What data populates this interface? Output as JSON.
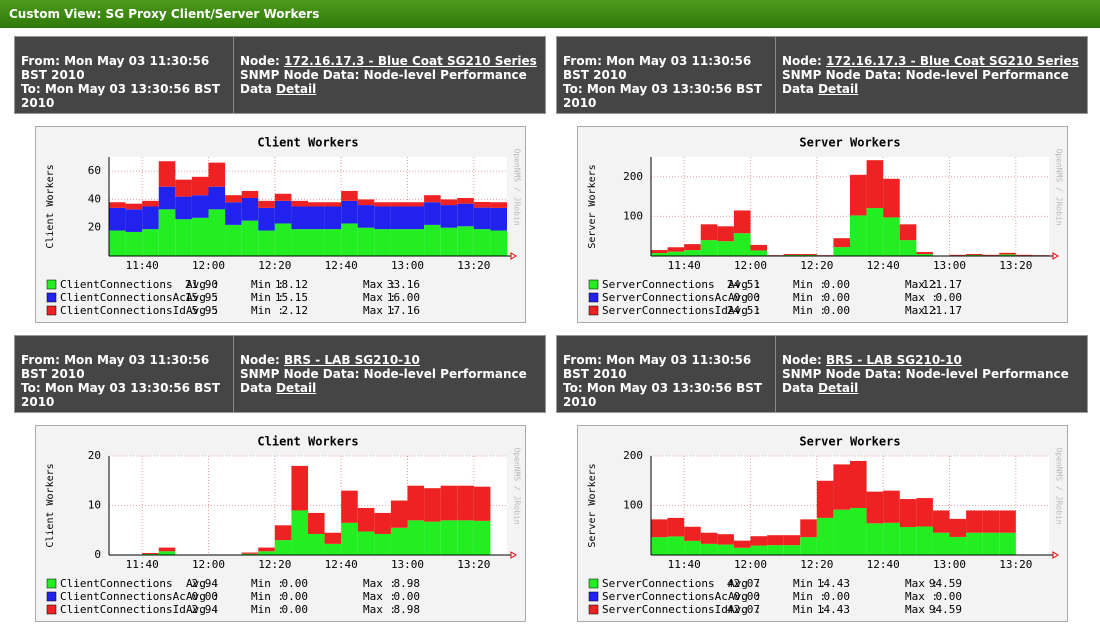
{
  "header": {
    "title": "Custom View: SG Proxy Client/Server Workers"
  },
  "panels": [
    {
      "from": "From: Mon May 03 11:30:56 BST 2010",
      "to": "To: Mon May 03 13:30:56 BST 2010",
      "node_label": "Node:",
      "node": "172.16.17.3 - Blue Coat SG210 Series",
      "snmp": "SNMP Node Data: Node-level Performance",
      "snmp_tail": "Data",
      "detail": "Detail"
    },
    {
      "from": "From: Mon May 03 11:30:56 BST 2010",
      "to": "To: Mon May 03 13:30:56 BST 2010",
      "node_label": "Node:",
      "node": "172.16.17.3 - Blue Coat SG210 Series",
      "snmp": "SNMP Node Data: Node-level Performance",
      "snmp_tail": "Data",
      "detail": "Detail"
    },
    {
      "from": "From: Mon May 03 11:30:56 BST 2010",
      "to": "To: Mon May 03 13:30:56 BST 2010",
      "node_label": "Node:",
      "node": "BRS - LAB SG210-10",
      "snmp": "SNMP Node Data: Node-level Performance",
      "snmp_tail": "Data",
      "detail": "Detail"
    },
    {
      "from": "From: Mon May 03 11:30:56 BST 2010",
      "to": "To: Mon May 03 13:30:56 BST 2010",
      "node_label": "Node:",
      "node": "BRS - LAB SG210-10",
      "snmp": "SNMP Node Data: Node-level Performance",
      "snmp_tail": "Data",
      "detail": "Detail"
    }
  ],
  "chart_data": [
    {
      "type": "bar",
      "stacked": true,
      "title": "Client Workers",
      "y_label": "Client Workers",
      "watermark": "OpenNMS / JRobin",
      "ylim": [
        0,
        70
      ],
      "yticks": [
        20,
        40,
        60
      ],
      "xlim": [
        690,
        810
      ],
      "xticks": [
        {
          "value": 700,
          "label": "11:40"
        },
        {
          "value": 720,
          "label": "12:00"
        },
        {
          "value": 740,
          "label": "12:20"
        },
        {
          "value": 760,
          "label": "12:40"
        },
        {
          "value": 780,
          "label": "13:00"
        },
        {
          "value": 800,
          "label": "13:20"
        }
      ],
      "stat_labels": [
        "Avg :",
        "Min :",
        "Max :"
      ],
      "series": [
        {
          "name": "ClientConnections",
          "color": "#22ee22",
          "stats": [
            "21.90",
            "18.12",
            "33.16"
          ],
          "values": [
            18,
            17,
            19,
            33,
            26,
            27,
            33,
            22,
            25,
            18,
            23,
            19,
            19,
            19,
            23,
            20,
            19,
            19,
            19,
            22,
            20,
            21,
            19,
            18
          ]
        },
        {
          "name": "ClientConnectionsAc",
          "color": "#2222ee",
          "stats": [
            "15.95",
            "15.15",
            "16.00"
          ],
          "values": [
            16,
            16,
            16,
            16,
            16,
            16,
            16,
            16,
            16,
            16,
            16,
            16,
            16,
            16,
            16,
            16,
            16,
            16,
            16,
            16,
            16,
            16,
            15.2,
            16
          ]
        },
        {
          "name": "ClientConnectionsId",
          "color": "#ee2222",
          "stats": [
            "5.95",
            "2.12",
            "17.16"
          ],
          "values": [
            4,
            4,
            4,
            18,
            12,
            13,
            17,
            5,
            5,
            5,
            5,
            4,
            3,
            3,
            7,
            4,
            3,
            3,
            3,
            5,
            4,
            4,
            4,
            4
          ]
        }
      ]
    },
    {
      "type": "bar",
      "stacked": true,
      "title": "Server Workers",
      "y_label": "Server Workers",
      "watermark": "OpenNMS / JRobin",
      "ylim": [
        0,
        250
      ],
      "yticks": [
        100,
        200
      ],
      "xlim": [
        690,
        810
      ],
      "xticks": [
        {
          "value": 700,
          "label": "11:40"
        },
        {
          "value": 720,
          "label": "12:00"
        },
        {
          "value": 740,
          "label": "12:20"
        },
        {
          "value": 760,
          "label": "12:40"
        },
        {
          "value": 780,
          "label": "13:00"
        },
        {
          "value": 800,
          "label": "13:20"
        }
      ],
      "stat_labels": [
        "Avg :",
        "Min :",
        "Max :"
      ],
      "series": [
        {
          "name": "ServerConnections",
          "color": "#22ee22",
          "stats": [
            "24.51",
            "0.00",
            "121.17"
          ],
          "values": [
            7.5,
            11,
            15,
            40,
            37.5,
            57.5,
            14,
            1,
            2.5,
            2.5,
            1,
            22.5,
            102.5,
            121,
            97.5,
            40,
            5,
            0,
            1.5,
            2.5,
            1.5,
            4,
            1.5,
            1
          ]
        },
        {
          "name": "ServerConnectionsAc",
          "color": "#2222ee",
          "stats": [
            "0.00",
            "0.00",
            "0.00"
          ],
          "values": [
            0,
            0,
            0,
            0,
            0,
            0,
            0,
            0,
            0,
            0,
            0,
            0,
            0,
            0,
            0,
            0,
            0,
            0,
            0,
            0,
            0,
            0,
            0,
            0
          ]
        },
        {
          "name": "ServerConnectionsId",
          "color": "#ee2222",
          "stats": [
            "24.51",
            "0.00",
            "121.17"
          ],
          "values": [
            7.5,
            11,
            15,
            40,
            37.5,
            57.5,
            14,
            1,
            2.5,
            2.5,
            1,
            22.5,
            102.5,
            121,
            97.5,
            40,
            5,
            0,
            1.5,
            2.5,
            1.5,
            4,
            1.5,
            1
          ]
        }
      ]
    },
    {
      "type": "bar",
      "stacked": true,
      "title": "Client Workers",
      "y_label": "Client Workers",
      "watermark": "OpenNMS / JRobin",
      "ylim": [
        0,
        20
      ],
      "yticks": [
        0,
        10,
        20
      ],
      "xlim": [
        690,
        810
      ],
      "xticks": [
        {
          "value": 700,
          "label": "11:40"
        },
        {
          "value": 720,
          "label": "12:00"
        },
        {
          "value": 740,
          "label": "12:20"
        },
        {
          "value": 760,
          "label": "12:40"
        },
        {
          "value": 780,
          "label": "13:00"
        },
        {
          "value": 800,
          "label": "13:20"
        }
      ],
      "stat_labels": [
        "Avg :",
        "Min :",
        "Max :"
      ],
      "series": [
        {
          "name": "ClientConnections",
          "color": "#22ee22",
          "stats": [
            "2.94",
            "0.00",
            "8.98"
          ],
          "values": [
            0,
            0,
            0.2,
            0.75,
            0,
            0,
            0,
            0,
            0.25,
            0.75,
            3,
            9,
            4.25,
            2.25,
            6.5,
            4.75,
            4.25,
            5.5,
            7,
            6.75,
            7,
            7,
            6.9,
            null
          ]
        },
        {
          "name": "ClientConnectionsAc",
          "color": "#2222ee",
          "stats": [
            "0.00",
            "0.00",
            "0.00"
          ],
          "values": [
            0,
            0,
            0,
            0,
            0,
            0,
            0,
            0,
            0,
            0,
            0,
            0,
            0,
            0,
            0,
            0,
            0,
            0,
            0,
            0,
            0,
            0,
            0,
            null
          ]
        },
        {
          "name": "ClientConnectionsId",
          "color": "#ee2222",
          "stats": [
            "2.94",
            "0.00",
            "8.98"
          ],
          "values": [
            0,
            0,
            0.2,
            0.75,
            0,
            0,
            0,
            0,
            0.25,
            0.75,
            3,
            9,
            4.25,
            2.25,
            6.5,
            4.75,
            4.25,
            5.5,
            7,
            6.75,
            7,
            7,
            6.9,
            null
          ]
        }
      ]
    },
    {
      "type": "bar",
      "stacked": true,
      "title": "Server Workers",
      "y_label": "Server Workers",
      "watermark": "OpenNMS / JRobin",
      "ylim": [
        0,
        200
      ],
      "yticks": [
        100,
        200
      ],
      "xlim": [
        690,
        810
      ],
      "xticks": [
        {
          "value": 700,
          "label": "11:40"
        },
        {
          "value": 720,
          "label": "12:00"
        },
        {
          "value": 740,
          "label": "12:20"
        },
        {
          "value": 760,
          "label": "12:40"
        },
        {
          "value": 780,
          "label": "13:00"
        },
        {
          "value": 800,
          "label": "13:20"
        }
      ],
      "stat_labels": [
        "Avg :",
        "Min :",
        "Max :"
      ],
      "series": [
        {
          "name": "ServerConnections",
          "color": "#22ee22",
          "stats": [
            "42.07",
            "14.43",
            "94.59"
          ],
          "values": [
            36,
            37.5,
            28.5,
            22.5,
            21,
            14.5,
            19,
            20,
            20,
            36,
            75,
            91.5,
            95,
            64,
            65,
            56.5,
            57.5,
            45,
            36.5,
            45,
            45,
            45,
            null,
            null
          ]
        },
        {
          "name": "ServerConnectionsAc",
          "color": "#2222ee",
          "stats": [
            "0.00",
            "0.00",
            "0.00"
          ],
          "values": [
            0,
            0,
            0,
            0,
            0,
            0,
            0,
            0,
            0,
            0,
            0,
            0,
            0,
            0,
            0,
            0,
            0,
            0,
            0,
            0,
            0,
            0,
            null,
            null
          ]
        },
        {
          "name": "ServerConnectionsId",
          "color": "#ee2222",
          "stats": [
            "42.07",
            "14.43",
            "94.59"
          ],
          "values": [
            36,
            37.5,
            28.5,
            22.5,
            21,
            14.5,
            19,
            20,
            20,
            36,
            75,
            91.5,
            95,
            64,
            65,
            56.5,
            57.5,
            45,
            36.5,
            45,
            45,
            45,
            null,
            null
          ]
        }
      ]
    }
  ]
}
